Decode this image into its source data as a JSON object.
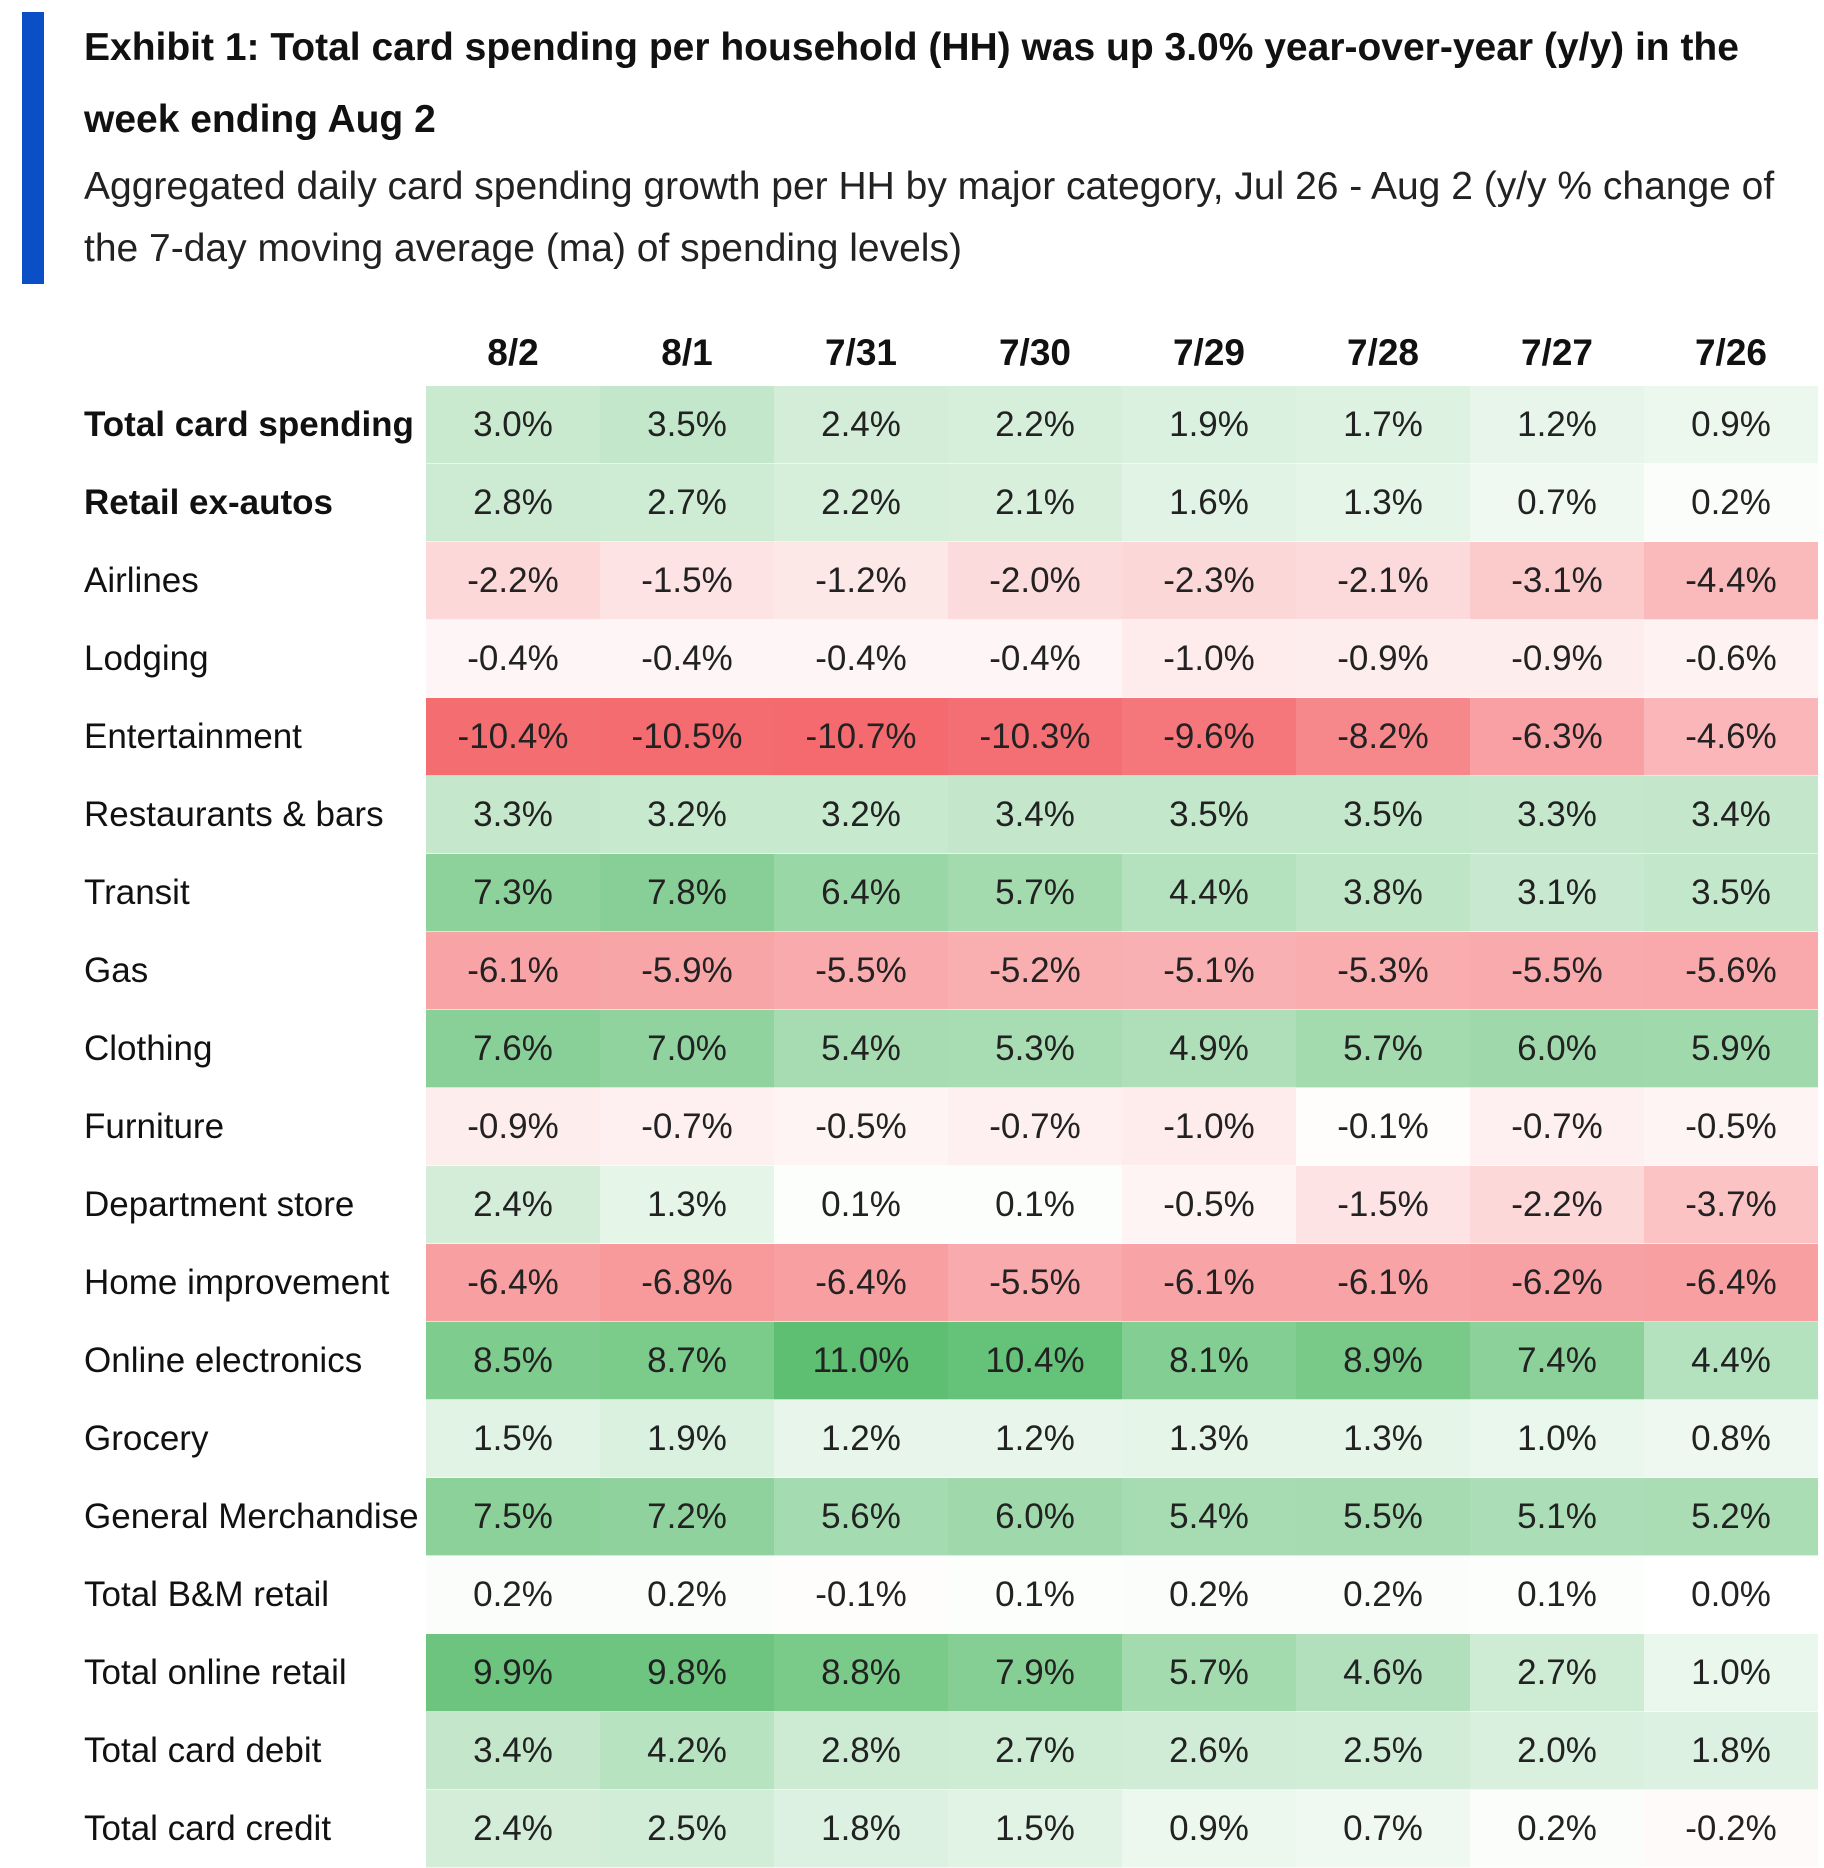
{
  "header": {
    "title": "Exhibit 1: Total card spending per household (HH) was up 3.0% year-over-year (y/y) in the week ending Aug 2",
    "subtitle": "Aggregated daily card spending growth per HH by major category, Jul 26 - Aug 2 (y/y % change of the 7-day moving average (ma) of spending levels)"
  },
  "colors": {
    "accent_bar": "#0b4fc6",
    "positive_max": "#5ebf72",
    "negative_max": "#f46a6e",
    "neutral": "#ffffff"
  },
  "chart_data": {
    "type": "heatmap",
    "title": "Exhibit 1: Total card spending per household (HH) was up 3.0% year-over-year (y/y) in the week ending Aug 2",
    "subtitle": "Aggregated daily card spending growth per HH by major category, Jul 26 - Aug 2 (y/y % change of the 7-day moving average (ma) of spending levels)",
    "columns": [
      "8/2",
      "8/1",
      "7/31",
      "7/30",
      "7/29",
      "7/28",
      "7/27",
      "7/26"
    ],
    "unit": "%",
    "rows": [
      {
        "label": "Total card spending",
        "bold": true,
        "values": [
          3.0,
          3.5,
          2.4,
          2.2,
          1.9,
          1.7,
          1.2,
          0.9
        ],
        "labels": [
          "3.0%",
          "3.5%",
          "2.4%",
          "2.2%",
          "1.9%",
          "1.7%",
          "1.2%",
          "0.9%"
        ]
      },
      {
        "label": "Retail ex-autos",
        "bold": true,
        "values": [
          2.8,
          2.7,
          2.2,
          2.1,
          1.6,
          1.3,
          0.7,
          0.2
        ],
        "labels": [
          "2.8%",
          "2.7%",
          "2.2%",
          "2.1%",
          "1.6%",
          "1.3%",
          "0.7%",
          "0.2%"
        ]
      },
      {
        "label": "Airlines",
        "bold": false,
        "values": [
          -2.2,
          -1.5,
          -1.2,
          -2.0,
          -2.3,
          -2.1,
          -3.1,
          -4.4
        ],
        "labels": [
          "-2.2%",
          "-1.5%",
          "-1.2%",
          "-2.0%",
          "-2.3%",
          "-2.1%",
          "-3.1%",
          "-4.4%"
        ]
      },
      {
        "label": "Lodging",
        "bold": false,
        "values": [
          -0.4,
          -0.4,
          -0.4,
          -0.4,
          -1.0,
          -0.9,
          -0.9,
          -0.6
        ],
        "labels": [
          "-0.4%",
          "-0.4%",
          "-0.4%",
          "-0.4%",
          "-1.0%",
          "-0.9%",
          "-0.9%",
          "-0.6%"
        ]
      },
      {
        "label": "Entertainment",
        "bold": false,
        "values": [
          -10.4,
          -10.5,
          -10.7,
          -10.3,
          -9.6,
          -8.2,
          -6.3,
          -4.6
        ],
        "labels": [
          "-10.4%",
          "-10.5%",
          "-10.7%",
          "-10.3%",
          "-9.6%",
          "-8.2%",
          "-6.3%",
          "-4.6%"
        ]
      },
      {
        "label": "Restaurants & bars",
        "bold": false,
        "values": [
          3.3,
          3.2,
          3.2,
          3.4,
          3.5,
          3.5,
          3.3,
          3.4
        ],
        "labels": [
          "3.3%",
          "3.2%",
          "3.2%",
          "3.4%",
          "3.5%",
          "3.5%",
          "3.3%",
          "3.4%"
        ]
      },
      {
        "label": "Transit",
        "bold": false,
        "values": [
          7.3,
          7.8,
          6.4,
          5.7,
          4.4,
          3.8,
          3.1,
          3.5
        ],
        "labels": [
          "7.3%",
          "7.8%",
          "6.4%",
          "5.7%",
          "4.4%",
          "3.8%",
          "3.1%",
          "3.5%"
        ]
      },
      {
        "label": "Gas",
        "bold": false,
        "values": [
          -6.1,
          -5.9,
          -5.5,
          -5.2,
          -5.1,
          -5.3,
          -5.5,
          -5.6
        ],
        "labels": [
          "-6.1%",
          "-5.9%",
          "-5.5%",
          "-5.2%",
          "-5.1%",
          "-5.3%",
          "-5.5%",
          "-5.6%"
        ]
      },
      {
        "label": "Clothing",
        "bold": false,
        "values": [
          7.6,
          7.0,
          5.4,
          5.3,
          4.9,
          5.7,
          6.0,
          5.9
        ],
        "labels": [
          "7.6%",
          "7.0%",
          "5.4%",
          "5.3%",
          "4.9%",
          "5.7%",
          "6.0%",
          "5.9%"
        ]
      },
      {
        "label": "Furniture",
        "bold": false,
        "values": [
          -0.9,
          -0.7,
          -0.5,
          -0.7,
          -1.0,
          -0.1,
          -0.7,
          -0.5
        ],
        "labels": [
          "-0.9%",
          "-0.7%",
          "-0.5%",
          "-0.7%",
          "-1.0%",
          "-0.1%",
          "-0.7%",
          "-0.5%"
        ]
      },
      {
        "label": "Department store",
        "bold": false,
        "values": [
          2.4,
          1.3,
          0.1,
          0.1,
          -0.5,
          -1.5,
          -2.2,
          -3.7
        ],
        "labels": [
          "2.4%",
          "1.3%",
          "0.1%",
          "0.1%",
          "-0.5%",
          "-1.5%",
          "-2.2%",
          "-3.7%"
        ]
      },
      {
        "label": "Home improvement",
        "bold": false,
        "values": [
          -6.4,
          -6.8,
          -6.4,
          -5.5,
          -6.1,
          -6.1,
          -6.2,
          -6.4
        ],
        "labels": [
          "-6.4%",
          "-6.8%",
          "-6.4%",
          "-5.5%",
          "-6.1%",
          "-6.1%",
          "-6.2%",
          "-6.4%"
        ]
      },
      {
        "label": "Online electronics",
        "bold": false,
        "values": [
          8.5,
          8.7,
          11.0,
          10.4,
          8.1,
          8.9,
          7.4,
          4.4
        ],
        "labels": [
          "8.5%",
          "8.7%",
          "11.0%",
          "10.4%",
          "8.1%",
          "8.9%",
          "7.4%",
          "4.4%"
        ]
      },
      {
        "label": "Grocery",
        "bold": false,
        "values": [
          1.5,
          1.9,
          1.2,
          1.2,
          1.3,
          1.3,
          1.0,
          0.8
        ],
        "labels": [
          "1.5%",
          "1.9%",
          "1.2%",
          "1.2%",
          "1.3%",
          "1.3%",
          "1.0%",
          "0.8%"
        ]
      },
      {
        "label": "General Merchandise",
        "bold": false,
        "values": [
          7.5,
          7.2,
          5.6,
          6.0,
          5.4,
          5.5,
          5.1,
          5.2
        ],
        "labels": [
          "7.5%",
          "7.2%",
          "5.6%",
          "6.0%",
          "5.4%",
          "5.5%",
          "5.1%",
          "5.2%"
        ]
      },
      {
        "label": "Total B&M retail",
        "bold": false,
        "values": [
          0.2,
          0.2,
          -0.1,
          0.1,
          0.2,
          0.2,
          0.1,
          0.0
        ],
        "labels": [
          "0.2%",
          "0.2%",
          "-0.1%",
          "0.1%",
          "0.2%",
          "0.2%",
          "0.1%",
          "0.0%"
        ]
      },
      {
        "label": "Total online retail",
        "bold": false,
        "values": [
          9.9,
          9.8,
          8.8,
          7.9,
          5.7,
          4.6,
          2.7,
          1.0
        ],
        "labels": [
          "9.9%",
          "9.8%",
          "8.8%",
          "7.9%",
          "5.7%",
          "4.6%",
          "2.7%",
          "1.0%"
        ]
      },
      {
        "label": "Total card debit",
        "bold": false,
        "values": [
          3.4,
          4.2,
          2.8,
          2.7,
          2.6,
          2.5,
          2.0,
          1.8
        ],
        "labels": [
          "3.4%",
          "4.2%",
          "2.8%",
          "2.7%",
          "2.6%",
          "2.5%",
          "2.0%",
          "1.8%"
        ]
      },
      {
        "label": "Total card credit",
        "bold": false,
        "values": [
          2.4,
          2.5,
          1.8,
          1.5,
          0.9,
          0.7,
          0.2,
          -0.2
        ],
        "labels": [
          "2.4%",
          "2.5%",
          "1.8%",
          "1.5%",
          "0.9%",
          "0.7%",
          "0.2%",
          "-0.2%"
        ]
      }
    ]
  }
}
